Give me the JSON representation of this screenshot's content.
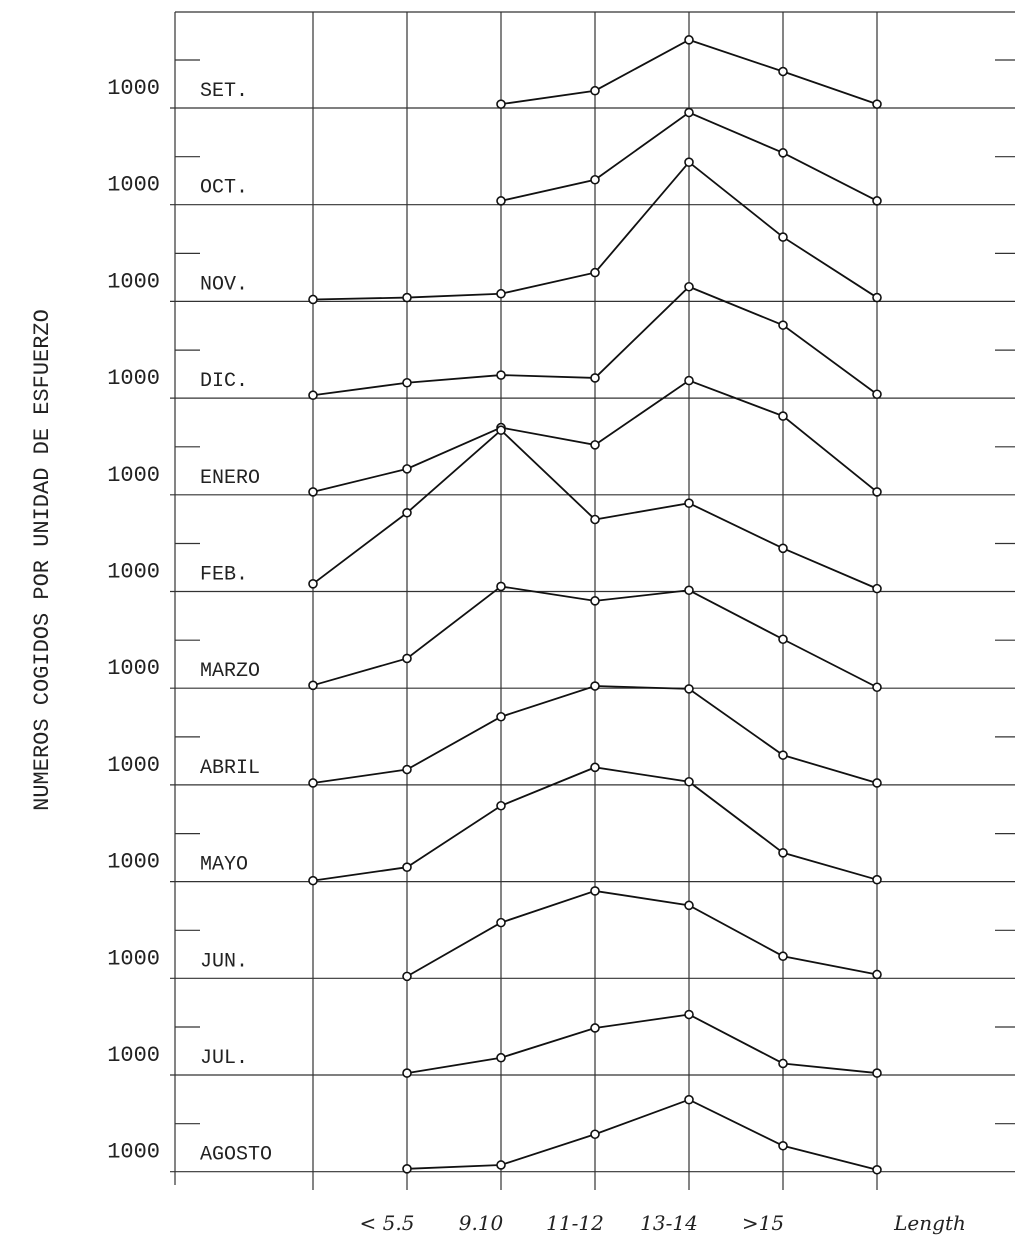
{
  "chart_data": {
    "type": "line",
    "y_label": "NUMEROS COGIDOS POR UNIDAD DE ESFUERZO",
    "x_label": "Length",
    "categories": [
      null,
      "< 5.5",
      "9.10",
      "11-12",
      "13-14",
      ">15",
      null
    ],
    "ylim": [
      0,
      100
    ],
    "color": "#111111",
    "series": [
      {
        "name": "SET.",
        "scale_label": "1000",
        "values": [
          null,
          null,
          4,
          18,
          71,
          38,
          4
        ]
      },
      {
        "name": "OCT.",
        "scale_label": "1000",
        "values": [
          null,
          null,
          4,
          26,
          96,
          54,
          4
        ]
      },
      {
        "name": "NOV.",
        "scale_label": "1000",
        "values": [
          2,
          4,
          8,
          30,
          145,
          67,
          4
        ]
      },
      {
        "name": "DIC.",
        "scale_label": "1000",
        "values": [
          3,
          16,
          24,
          21,
          116,
          76,
          4
        ]
      },
      {
        "name": "ENERO",
        "scale_label": "1000",
        "values": [
          3,
          27,
          70,
          52,
          119,
          82,
          3
        ]
      },
      {
        "name": "FEB.",
        "scale_label": "1000",
        "values": [
          8,
          82,
          168,
          75,
          92,
          45,
          3
        ]
      },
      {
        "name": "MARZO",
        "scale_label": "1000",
        "values": [
          3,
          31,
          106,
          91,
          102,
          51,
          1
        ]
      },
      {
        "name": "ABRIL",
        "scale_label": "1000",
        "values": [
          2,
          16,
          71,
          103,
          100,
          31,
          2
        ]
      },
      {
        "name": "MAYO",
        "scale_label": "1000",
        "values": [
          1,
          15,
          79,
          119,
          104,
          30,
          2
        ]
      },
      {
        "name": "JUN.",
        "scale_label": "1000",
        "values": [
          null,
          2,
          58,
          91,
          76,
          23,
          4
        ]
      },
      {
        "name": "JUL.",
        "scale_label": "1000",
        "values": [
          null,
          2,
          18,
          49,
          63,
          12,
          2
        ]
      },
      {
        "name": "AGOSTO",
        "scale_label": "1000",
        "values": [
          null,
          3,
          7,
          39,
          75,
          27,
          2
        ]
      }
    ]
  }
}
